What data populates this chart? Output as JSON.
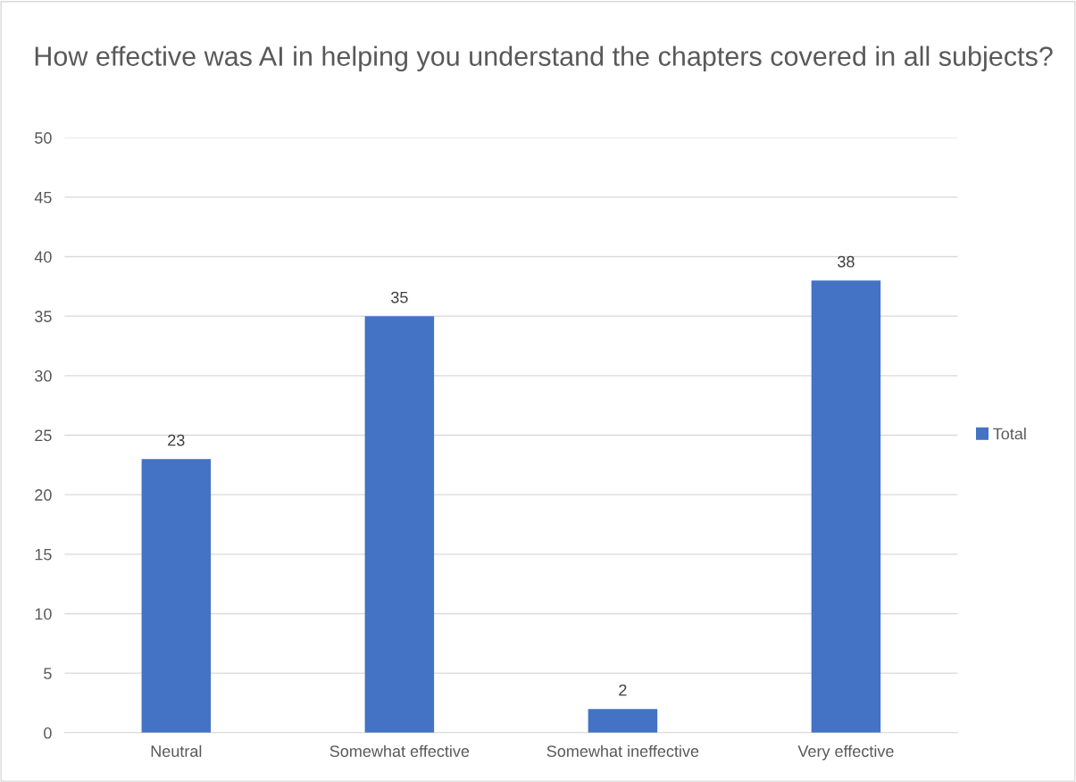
{
  "chart_data": {
    "type": "bar",
    "title": "How effective was AI in helping you understand the chapters covered in all subjects?",
    "categories": [
      "Neutral",
      "Somewhat effective",
      "Somewhat ineffective",
      "Very effective"
    ],
    "series": [
      {
        "name": "Total",
        "color": "#4472c4",
        "values": [
          23,
          35,
          2,
          38
        ]
      }
    ],
    "ylim": [
      0,
      50
    ],
    "yticks": [
      0,
      5,
      10,
      15,
      20,
      25,
      30,
      35,
      40,
      45,
      50
    ],
    "grid": "y",
    "legend": "right",
    "data_labels": true
  }
}
